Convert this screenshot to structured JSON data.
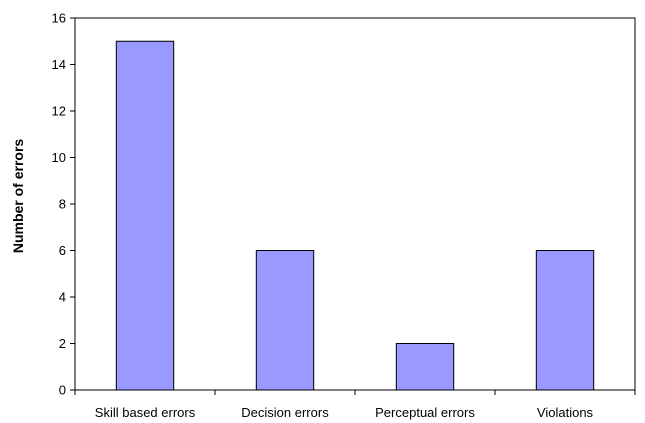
{
  "chart_data": {
    "type": "bar",
    "title": "",
    "xlabel": "",
    "ylabel": "Number of errors",
    "categories": [
      "Skill based errors",
      "Decision errors",
      "Perceptual errors",
      "Violations"
    ],
    "values": [
      15,
      6,
      2,
      6
    ],
    "ylim": [
      0,
      16
    ],
    "yticks": [
      0,
      2,
      4,
      6,
      8,
      10,
      12,
      14,
      16
    ],
    "grid": false,
    "legend": "none",
    "bar_color": "#9999ff",
    "bar_edge_color": "#000000"
  }
}
